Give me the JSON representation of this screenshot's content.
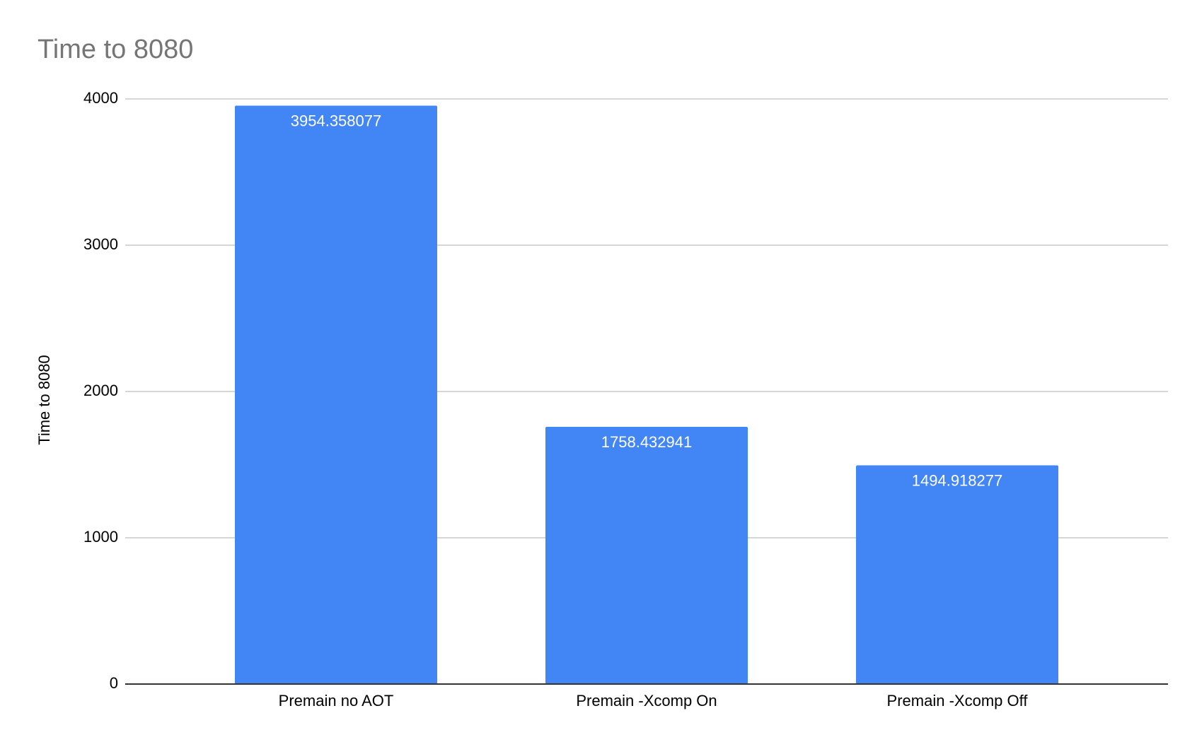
{
  "chart_data": {
    "type": "bar",
    "title": "Time to 8080",
    "y_label": "Time to 8080",
    "categories": [
      "Premain no AOT",
      "Premain -Xcomp On",
      "Premain -Xcomp Off"
    ],
    "values": [
      3954.358077,
      1758.432941,
      1494.918277
    ],
    "color": "#4285f4",
    "ylim": [
      0,
      4000
    ],
    "yticks": [
      0,
      1000,
      2000,
      3000,
      4000
    ],
    "grid": true
  }
}
